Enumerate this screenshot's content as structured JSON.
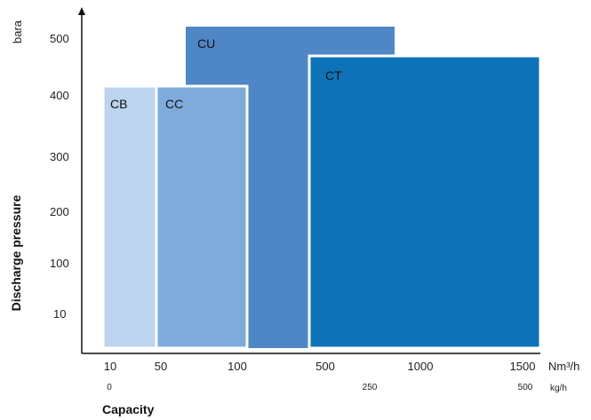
{
  "chart_data": {
    "type": "area",
    "title": "",
    "xlabel": "Capacity",
    "ylabel": "Discharge pressure",
    "y_unit": "bara",
    "x_unit_primary": "Nm³/h",
    "x_unit_secondary": "kg/h",
    "x_ticks_primary": [
      "10",
      "50",
      "100",
      "500",
      "1000",
      "1500"
    ],
    "x_ticks_secondary": [
      "0",
      "250",
      "500"
    ],
    "y_ticks": [
      "10",
      "100",
      "200",
      "300",
      "400",
      "500"
    ],
    "x_scale": "categorical-nonlinear",
    "grid": false,
    "legend": "none",
    "regions": [
      {
        "name": "CB",
        "x_from": "10",
        "x_to": "50",
        "y_max": 410,
        "color": "#bcd4ee"
      },
      {
        "name": "CC",
        "x_from": "50",
        "x_to": "100",
        "y_max": 410,
        "color": "#7fabdc"
      },
      {
        "name": "CU",
        "x_from": "50",
        "x_to": "1000",
        "y_max": 520,
        "color": "#4f86c6"
      },
      {
        "name": "CT",
        "x_from": "500",
        "x_to": "1500",
        "y_max": 465,
        "color": "#0e72b9"
      }
    ]
  }
}
